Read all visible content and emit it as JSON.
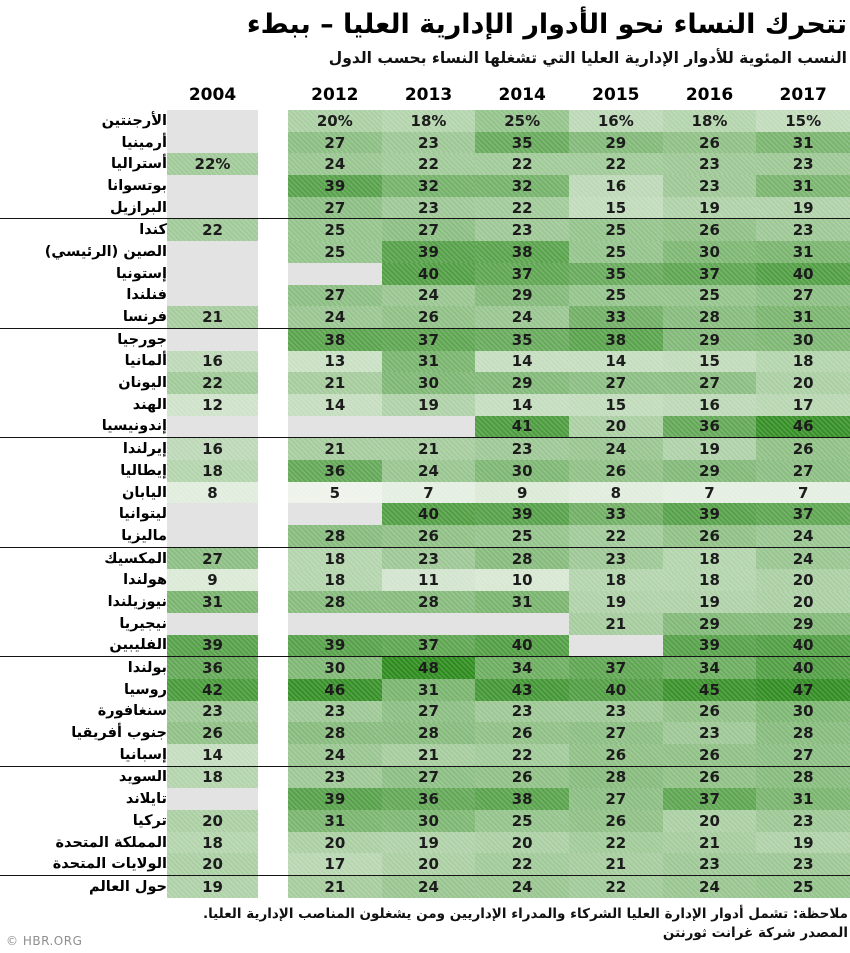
{
  "title": "تتحرك النساء نحو الأدوار الإدارية العليا – ببطء",
  "subtitle": "النسب المئوية للأدوار الإدارية العليا التي تشغلها النساء بحسب الدول",
  "note": "ملاحظة: تشمل أدوار الإدارة العليا الشركاء والمدراء الإداريين ومن يشغلون المناصب الإدارية العليا.",
  "source": "المصدر شركة غرانت ثورنتن",
  "credit": "© HBR.ORG",
  "colors": {
    "cell_light": "#edf3ea",
    "cell_dark": "#2e8b1e",
    "missing": "#e3e3e3",
    "separator": "#141414",
    "scale_min_value": 5,
    "scale_max_value": 48
  },
  "chart_data": {
    "type": "heatmap",
    "title": "تتحرك النساء نحو الأدوار الإدارية العليا – ببطء",
    "subtitle": "النسب المئوية للأدوار الإدارية العليا التي تشغلها النساء بحسب الدول",
    "columns": [
      "2004",
      "2012",
      "2013",
      "2014",
      "2015",
      "2016",
      "2017"
    ],
    "value_unit": "percent",
    "legend_position": "none",
    "groups": [
      {
        "rows": [
          {
            "country": "الأرجنتين",
            "values": [
              null,
              "20%",
              "18%",
              "25%",
              "16%",
              "18%",
              "15%"
            ]
          },
          {
            "country": "أرمينيا",
            "values": [
              null,
              "27",
              "23",
              "35",
              "29",
              "26",
              "31"
            ]
          },
          {
            "country": "أستراليا",
            "values": [
              "22%",
              "24",
              "22",
              "22",
              "22",
              "23",
              "23"
            ]
          },
          {
            "country": "بوتسوانا",
            "values": [
              null,
              "39",
              "32",
              "32",
              "16",
              "23",
              "31"
            ]
          },
          {
            "country": "البرازيل",
            "values": [
              null,
              "27",
              "23",
              "22",
              "15",
              "19",
              "19"
            ]
          }
        ]
      },
      {
        "rows": [
          {
            "country": "كندا",
            "values": [
              "22",
              "25",
              "27",
              "23",
              "25",
              "26",
              "23"
            ]
          },
          {
            "country": "الصين (الرئيسي)",
            "values": [
              null,
              "25",
              "39",
              "38",
              "25",
              "30",
              "31"
            ]
          },
          {
            "country": "إستونيا",
            "values": [
              null,
              null,
              "40",
              "37",
              "35",
              "37",
              "40"
            ]
          },
          {
            "country": "فنلندا",
            "values": [
              null,
              "27",
              "24",
              "29",
              "25",
              "25",
              "27"
            ]
          },
          {
            "country": "فرنسا",
            "values": [
              "21",
              "24",
              "26",
              "24",
              "33",
              "28",
              "31"
            ]
          }
        ]
      },
      {
        "rows": [
          {
            "country": "جورجيا",
            "values": [
              null,
              "38",
              "37",
              "35",
              "38",
              "29",
              "30"
            ]
          },
          {
            "country": "ألمانيا",
            "values": [
              "16",
              "13",
              "31",
              "14",
              "14",
              "15",
              "18"
            ]
          },
          {
            "country": "اليونان",
            "values": [
              "22",
              "21",
              "30",
              "29",
              "27",
              "27",
              "20"
            ]
          },
          {
            "country": "الهند",
            "values": [
              "12",
              "14",
              "19",
              "14",
              "15",
              "16",
              "17"
            ]
          },
          {
            "country": "إندونيسيا",
            "values": [
              null,
              null,
              null,
              "41",
              "20",
              "36",
              "46"
            ]
          }
        ]
      },
      {
        "rows": [
          {
            "country": "إيرلندا",
            "values": [
              "16",
              "21",
              "21",
              "23",
              "24",
              "19",
              "26"
            ]
          },
          {
            "country": "إيطاليا",
            "values": [
              "18",
              "36",
              "24",
              "30",
              "26",
              "29",
              "27"
            ]
          },
          {
            "country": "اليابان",
            "values": [
              "8",
              "5",
              "7",
              "9",
              "8",
              "7",
              "7"
            ]
          },
          {
            "country": "ليتوانيا",
            "values": [
              null,
              null,
              "40",
              "39",
              "33",
              "39",
              "37"
            ]
          },
          {
            "country": "ماليزيا",
            "values": [
              null,
              "28",
              "26",
              "25",
              "22",
              "26",
              "24"
            ]
          }
        ]
      },
      {
        "rows": [
          {
            "country": "المكسيك",
            "values": [
              "27",
              "18",
              "23",
              "28",
              "23",
              "18",
              "24"
            ]
          },
          {
            "country": "هولندا",
            "values": [
              "9",
              "18",
              "11",
              "10",
              "18",
              "18",
              "20"
            ]
          },
          {
            "country": "نيوزيلندا",
            "values": [
              "31",
              "28",
              "28",
              "31",
              "19",
              "19",
              "20"
            ]
          },
          {
            "country": "نيجيريا",
            "values": [
              null,
              null,
              null,
              null,
              "21",
              "29",
              "29"
            ]
          },
          {
            "country": "الفليبين",
            "values": [
              "39",
              "39",
              "37",
              "40",
              null,
              "39",
              "40"
            ]
          }
        ]
      },
      {
        "rows": [
          {
            "country": "بولندا",
            "values": [
              "36",
              "30",
              "48",
              "34",
              "37",
              "34",
              "40"
            ]
          },
          {
            "country": "روسيا",
            "values": [
              "42",
              "46",
              "31",
              "43",
              "40",
              "45",
              "47"
            ]
          },
          {
            "country": "سنغافورة",
            "values": [
              "23",
              "23",
              "27",
              "23",
              "23",
              "26",
              "30"
            ]
          },
          {
            "country": "جنوب أفريقيا",
            "values": [
              "26",
              "28",
              "28",
              "26",
              "27",
              "23",
              "28"
            ]
          },
          {
            "country": "إسبانيا",
            "values": [
              "14",
              "24",
              "21",
              "22",
              "26",
              "26",
              "27"
            ]
          }
        ]
      },
      {
        "rows": [
          {
            "country": "السويد",
            "values": [
              "18",
              "23",
              "27",
              "26",
              "28",
              "26",
              "28"
            ]
          },
          {
            "country": "تايلاند",
            "values": [
              null,
              "39",
              "36",
              "38",
              "27",
              "37",
              "31"
            ]
          },
          {
            "country": "تركيا",
            "values": [
              "20",
              "31",
              "30",
              "25",
              "26",
              "20",
              "23"
            ]
          },
          {
            "country": "المملكة المتحدة",
            "values": [
              "18",
              "20",
              "19",
              "20",
              "22",
              "21",
              "19"
            ]
          },
          {
            "country": "الولايات المتحدة",
            "values": [
              "20",
              "17",
              "20",
              "22",
              "21",
              "23",
              "23"
            ]
          }
        ]
      },
      {
        "rows": [
          {
            "country": "حول العالم",
            "values": [
              "19",
              "21",
              "24",
              "24",
              "22",
              "24",
              "25"
            ]
          }
        ]
      }
    ]
  }
}
